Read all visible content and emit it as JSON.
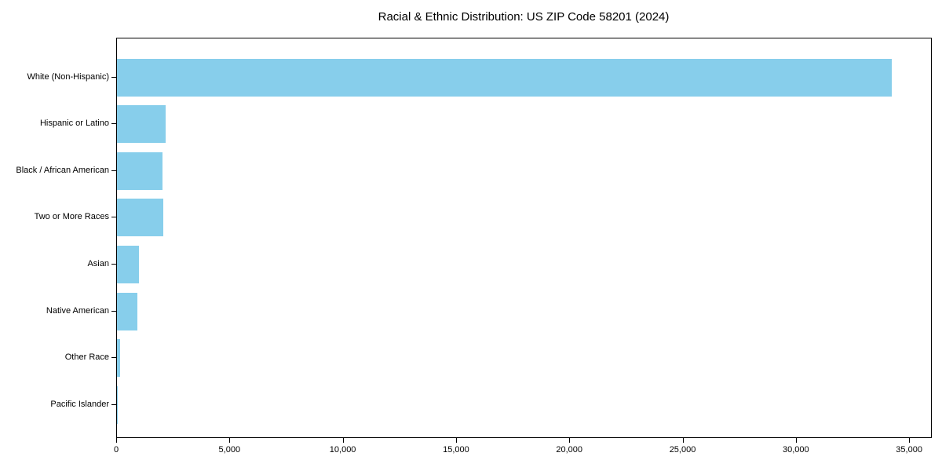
{
  "chart_data": {
    "type": "bar",
    "orientation": "horizontal",
    "title": "Racial & Ethnic Distribution: US ZIP Code 58201 (2024)",
    "categories": [
      "White (Non-Hispanic)",
      "Hispanic or Latino",
      "Black / African American",
      "Two or More Races",
      "Asian",
      "Native American",
      "Other Race",
      "Pacific Islander"
    ],
    "values": [
      34250,
      2140,
      2020,
      2050,
      960,
      890,
      140,
      15
    ],
    "xlabel": "",
    "ylabel": "",
    "xlim": [
      0,
      36000
    ],
    "xticks": [
      0,
      5000,
      10000,
      15000,
      20000,
      25000,
      30000,
      35000
    ],
    "xtick_labels": [
      "0",
      "5,000",
      "10,000",
      "15,000",
      "20,000",
      "25,000",
      "30,000",
      "35,000"
    ],
    "grid": false,
    "legend": null,
    "colors": {
      "bar_fill": "#87CEEB",
      "axis": "#000000",
      "text": "#000000",
      "background": "#ffffff"
    }
  }
}
